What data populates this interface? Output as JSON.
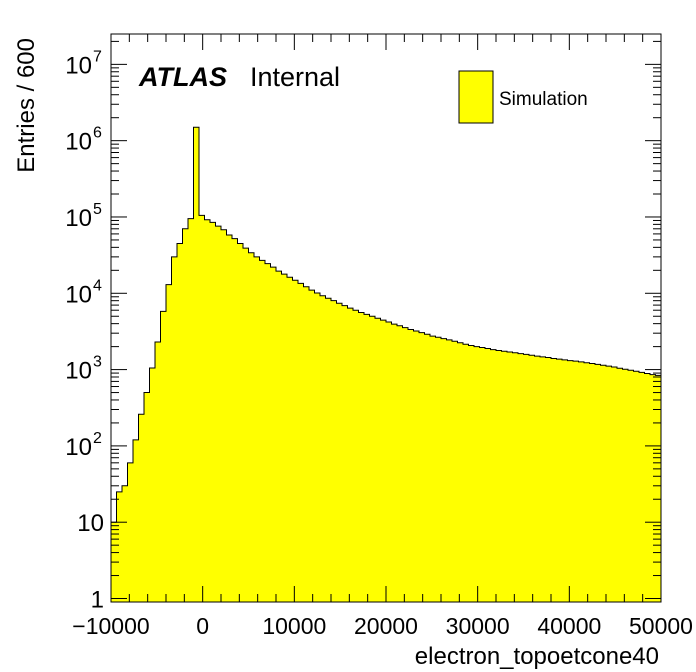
{
  "chart_data": {
    "type": "bar",
    "style": "histogram",
    "xlabel": "electron_topoetcone40",
    "ylabel": "Entries / 600",
    "xlim": [
      -10000,
      50000
    ],
    "ylim": [
      0.9,
      25000000
    ],
    "yscale": "log",
    "bin_width": 600,
    "fill_color": "#ffff00",
    "line_color": "#000000",
    "x_ticks": [
      "−10000",
      "0",
      "10000",
      "20000",
      "30000",
      "40000",
      "50000"
    ],
    "x_tick_values": [
      -10000,
      0,
      10000,
      20000,
      30000,
      40000,
      50000
    ],
    "y_ticks": [
      {
        "value": 1,
        "base": "1",
        "exp": ""
      },
      {
        "value": 10,
        "base": "10",
        "exp": ""
      },
      {
        "value": 100,
        "base": "10",
        "exp": "2"
      },
      {
        "value": 1000,
        "base": "10",
        "exp": "3"
      },
      {
        "value": 10000,
        "base": "10",
        "exp": "4"
      },
      {
        "value": 100000,
        "base": "10",
        "exp": "5"
      },
      {
        "value": 1000000,
        "base": "10",
        "exp": "6"
      },
      {
        "value": 10000000,
        "base": "10",
        "exp": "7"
      }
    ],
    "atlas_label": "ATLAS",
    "atlas_sublabel": "Internal",
    "legend": {
      "placement": "top-right",
      "entries": [
        {
          "name": "Simulation",
          "color": "#ffff00"
        }
      ]
    },
    "series": [
      {
        "name": "Simulation",
        "x_start": -10000,
        "values": [
          10,
          25,
          30,
          60,
          120,
          260,
          500,
          1050,
          2300,
          5800,
          13000,
          30000,
          45000,
          70000,
          95000,
          1500000,
          105000,
          92000,
          85000,
          76000,
          68000,
          58000,
          52000,
          45000,
          39000,
          34000,
          30000,
          27000,
          24500,
          22000,
          19500,
          17800,
          16200,
          14800,
          13500,
          12200,
          11000,
          10100,
          9300,
          8600,
          8000,
          7400,
          6900,
          6400,
          6000,
          5600,
          5300,
          5000,
          4700,
          4450,
          4200,
          3950,
          3750,
          3550,
          3350,
          3200,
          3050,
          2900,
          2750,
          2650,
          2550,
          2450,
          2350,
          2250,
          2150,
          2070,
          2000,
          1950,
          1890,
          1830,
          1780,
          1740,
          1700,
          1660,
          1620,
          1580,
          1540,
          1500,
          1470,
          1440,
          1400,
          1370,
          1340,
          1310,
          1290,
          1260,
          1230,
          1200,
          1170,
          1140,
          1110,
          1080,
          1040,
          1010,
          980,
          950,
          920,
          890,
          860,
          840,
          820,
          800
        ]
      }
    ]
  }
}
